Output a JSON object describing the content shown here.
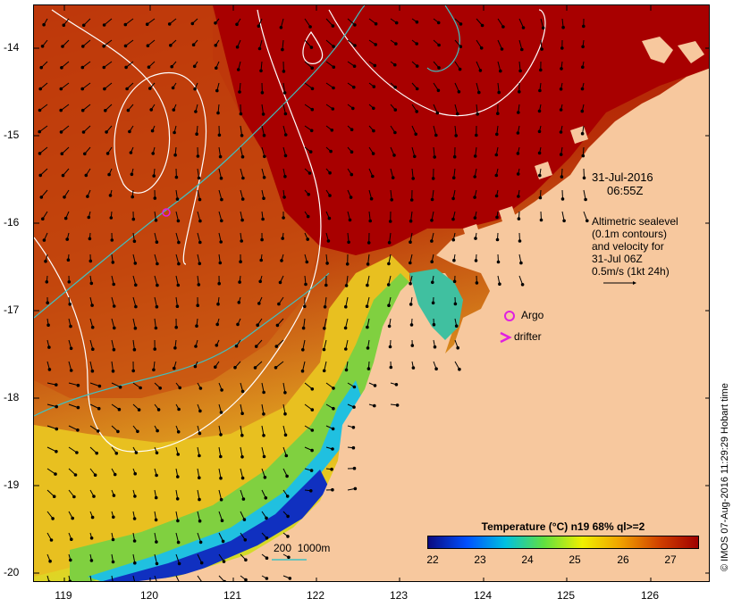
{
  "map": {
    "lat_ticks": [
      "-14",
      "-15",
      "-16",
      "-17",
      "-18",
      "-19",
      "-20"
    ],
    "lon_ticks": [
      "119",
      "120",
      "121",
      "122",
      "123",
      "124",
      "125",
      "126"
    ],
    "timestamp": {
      "date": "31-Jul-2016",
      "time": "06:55Z"
    },
    "legend_note": [
      "Altimetric sealevel",
      "(0.1m contours)",
      "and velocity for",
      "31-Jul 06Z",
      "0.5m/s (1kt 24h)"
    ],
    "markers": {
      "argo_label": "Argo",
      "drifter_label": "drifter",
      "argo_color": "#e020e0",
      "drifter_color": "#e020e0"
    },
    "depth_label": "200  1000m",
    "colorbar": {
      "title": "Temperature (°C) n19 68% ql>=2",
      "ticks": [
        "22",
        "23",
        "24",
        "25",
        "26",
        "27"
      ],
      "colors": [
        "#0a0a80",
        "#0050ff",
        "#00c0e0",
        "#60e040",
        "#f0f000",
        "#f0a000",
        "#d04000",
        "#a00000"
      ]
    },
    "copyright": "© IMOS 07-Aug-2016 11:29:29 Hobart time",
    "colors": {
      "land": "#f7c89e",
      "warm_water": "#b01000",
      "mid_water": "#d06010",
      "contour": "#ffffff",
      "isobath": "#40c0c0"
    }
  }
}
